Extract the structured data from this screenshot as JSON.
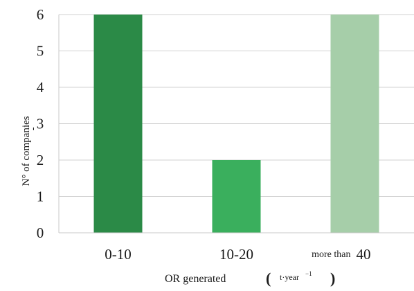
{
  "chart_data": {
    "type": "bar",
    "categories": [
      "0-10",
      "10-20",
      "more than 40"
    ],
    "category_labels": [
      {
        "main": "0-10"
      },
      {
        "main": "10-20"
      },
      {
        "prefix": "more than",
        "main": "40"
      }
    ],
    "values": [
      6,
      2,
      6
    ],
    "bar_colors": [
      "#2b8a47",
      "#3aaf5d",
      "#a6cea9"
    ],
    "ylabel": "N° of companies",
    "ylabel_mark": "-",
    "xlabel": "OR generated",
    "xlabel_unit": "t·year",
    "xlabel_unit_exponent": "−1",
    "ylim": [
      0,
      6
    ],
    "yticks": [
      "0",
      "1",
      "2",
      "3",
      "4",
      "5",
      "6"
    ],
    "grid": true
  }
}
